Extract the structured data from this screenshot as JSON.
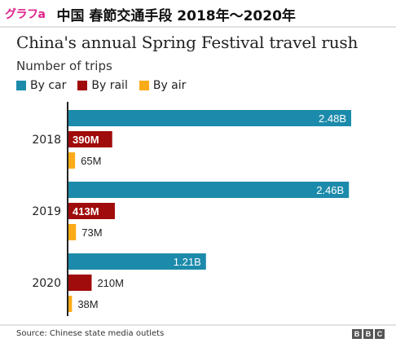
{
  "header": {
    "tag": "グラフa",
    "title": "中国  春節交通手段  2018年〜2020年"
  },
  "footer": {
    "source": "Source: Chinese state media outlets",
    "logo_letters": [
      "B",
      "B",
      "C"
    ]
  },
  "colors": {
    "car": "#1c8bab",
    "rail": "#a00b0b",
    "air": "#fbab18",
    "axis": "#222222"
  },
  "chart_data": {
    "type": "bar",
    "orientation": "horizontal",
    "title": "China's annual Spring Festival travel rush",
    "subtitle": "Number of trips",
    "categories": [
      "2018",
      "2019",
      "2020"
    ],
    "unit": "billion trips",
    "xlim": [
      0,
      2.48
    ],
    "grid": false,
    "legend": {
      "placement": "top-left"
    },
    "series": [
      {
        "name": "By car",
        "color_key": "car",
        "values": [
          2.48,
          2.46,
          1.21
        ],
        "labels": [
          "2.48B",
          "2.46B",
          "1.21B"
        ],
        "label_position": [
          "inside",
          "inside",
          "inside"
        ]
      },
      {
        "name": "By rail",
        "color_key": "rail",
        "values": [
          0.39,
          0.413,
          0.21
        ],
        "labels": [
          "390M",
          "413M",
          "210M"
        ],
        "label_position": [
          "inside",
          "inside",
          "outside"
        ]
      },
      {
        "name": "By air",
        "color_key": "air",
        "values": [
          0.065,
          0.073,
          0.038
        ],
        "labels": [
          "65M",
          "73M",
          "38M"
        ],
        "label_position": [
          "outside",
          "outside",
          "outside"
        ]
      }
    ]
  }
}
